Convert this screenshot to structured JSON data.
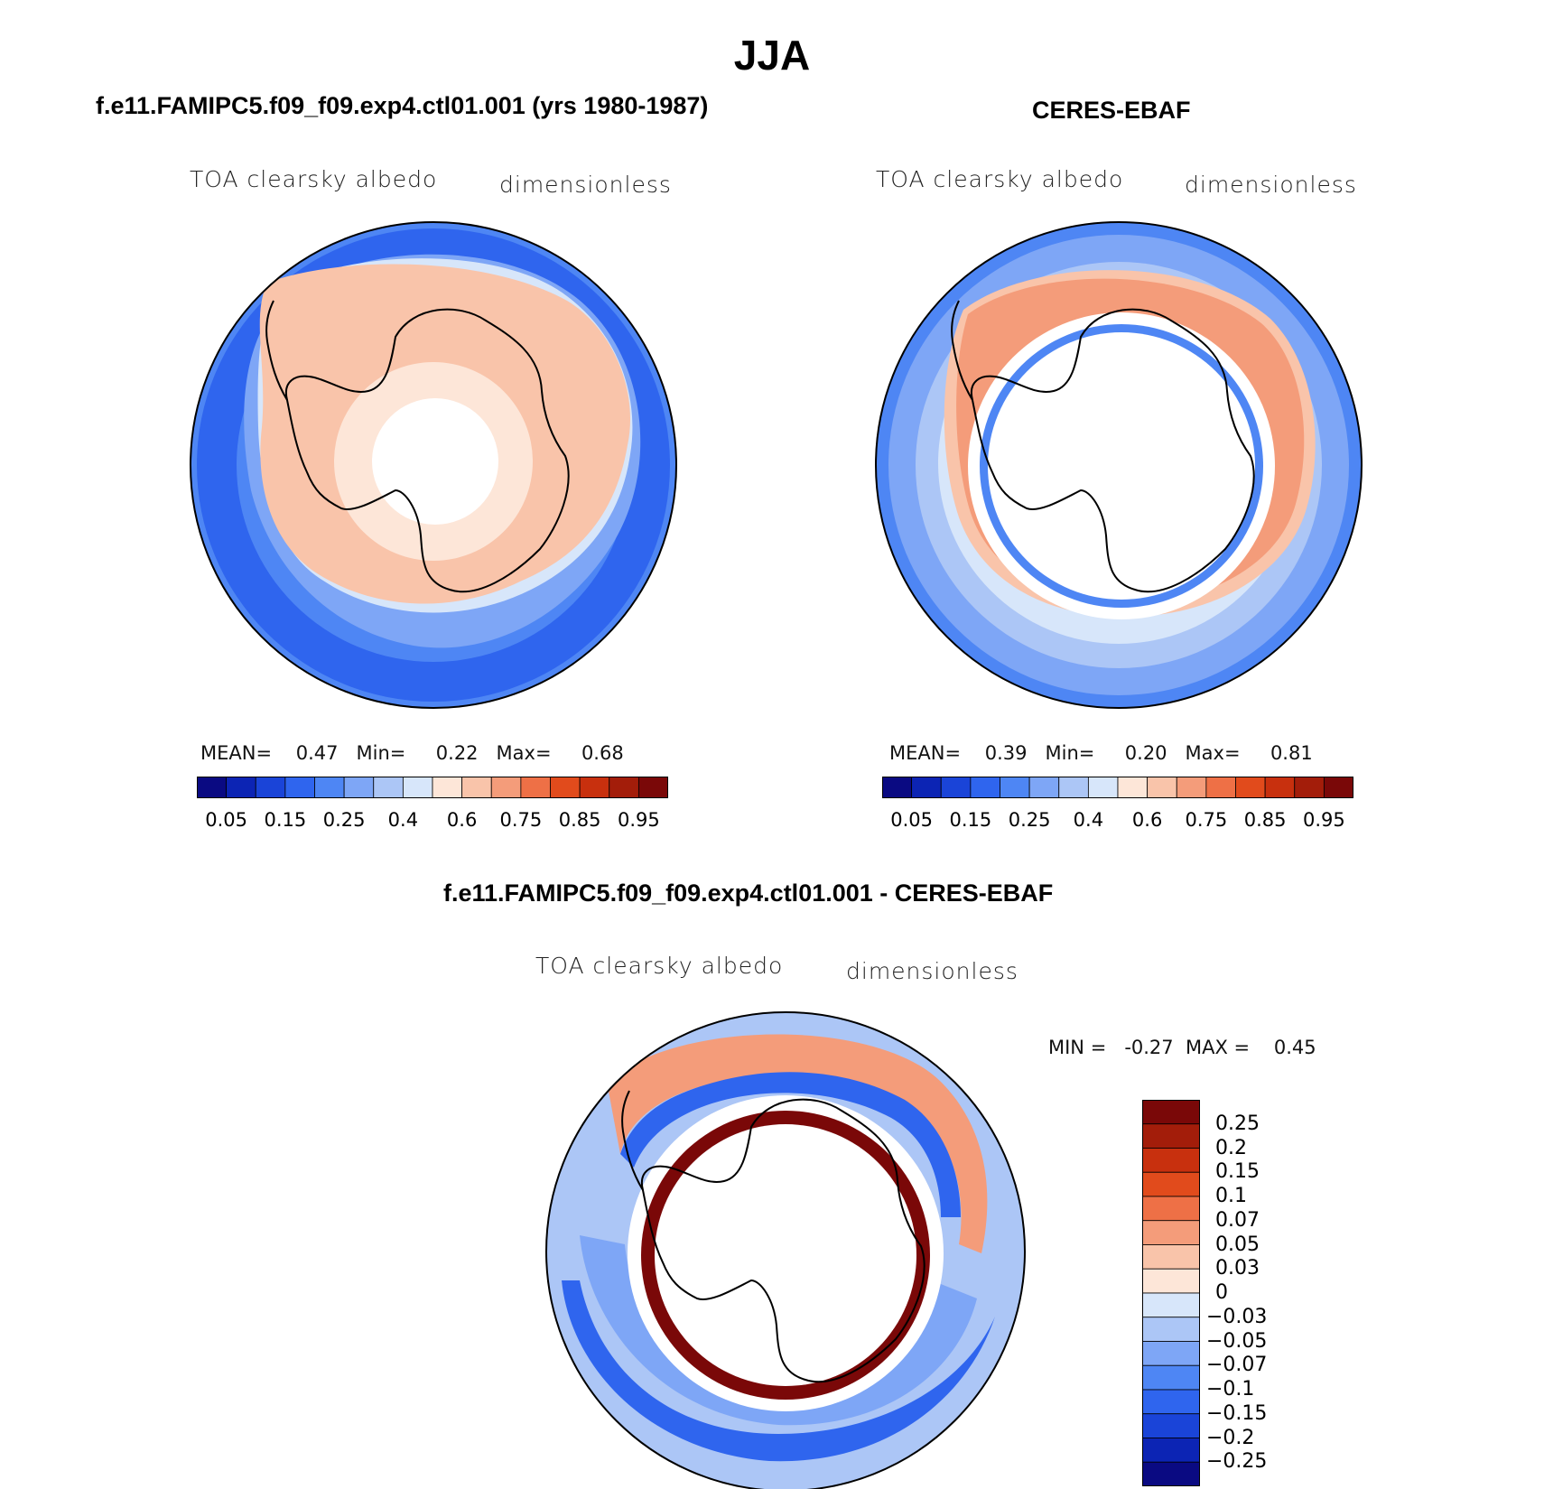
{
  "figure": {
    "title": "JJA"
  },
  "panels": [
    {
      "title": "f.e11.FAMIPC5.f09_f09.exp4.ctl01.001 (yrs 1980-1987)",
      "variable": "TOA clearsky albedo",
      "units": "dimensionless",
      "stats": "MEAN=    0.47   Min=     0.22   Max=     0.68",
      "colorbar": {
        "ticks": [
          "0.05",
          "0.15",
          "0.25",
          "0.4",
          "0.6",
          "0.75",
          "0.85",
          "0.95"
        ],
        "colors": [
          "#0a0a82",
          "#0c24b4",
          "#1a44d8",
          "#2f65ee",
          "#4e86f4",
          "#7ea6f6",
          "#acc6f6",
          "#d7e6fa",
          "#fde6d8",
          "#f9c4aa",
          "#f49c7a",
          "#ee7046",
          "#e14b1c",
          "#c8300e",
          "#a31d0a",
          "#7a0808"
        ]
      }
    },
    {
      "title": "CERES-EBAF",
      "variable": "TOA clearsky albedo",
      "units": "dimensionless",
      "stats": "MEAN=    0.39   Min=     0.20   Max=     0.81",
      "colorbar": {
        "ticks": [
          "0.05",
          "0.15",
          "0.25",
          "0.4",
          "0.6",
          "0.75",
          "0.85",
          "0.95"
        ],
        "colors": [
          "#0a0a82",
          "#0c24b4",
          "#1a44d8",
          "#2f65ee",
          "#4e86f4",
          "#7ea6f6",
          "#acc6f6",
          "#d7e6fa",
          "#fde6d8",
          "#f9c4aa",
          "#f49c7a",
          "#ee7046",
          "#e14b1c",
          "#c8300e",
          "#a31d0a",
          "#7a0808"
        ]
      }
    },
    {
      "title": "f.e11.FAMIPC5.f09_f09.exp4.ctl01.001 - CERES-EBAF",
      "variable": "TOA clearsky albedo",
      "units": "dimensionless",
      "stats": "MIN =   -0.27  MAX =    0.45",
      "colorbar": {
        "ticks": [
          "0.25",
          "0.2",
          "0.15",
          "0.1",
          "0.07",
          "0.05",
          "0.03",
          "0",
          "−0.03",
          "−0.05",
          "−0.07",
          "−0.1",
          "−0.15",
          "−0.2",
          "−0.25"
        ],
        "colors": [
          "#7a0808",
          "#a31d0a",
          "#c8300e",
          "#e14b1c",
          "#ee7046",
          "#f49c7a",
          "#f9c4aa",
          "#fde6d8",
          "#d7e6fa",
          "#acc6f6",
          "#7ea6f6",
          "#4e86f4",
          "#2f65ee",
          "#1a44d8",
          "#0c24b4",
          "#0a0a82"
        ]
      }
    }
  ]
}
